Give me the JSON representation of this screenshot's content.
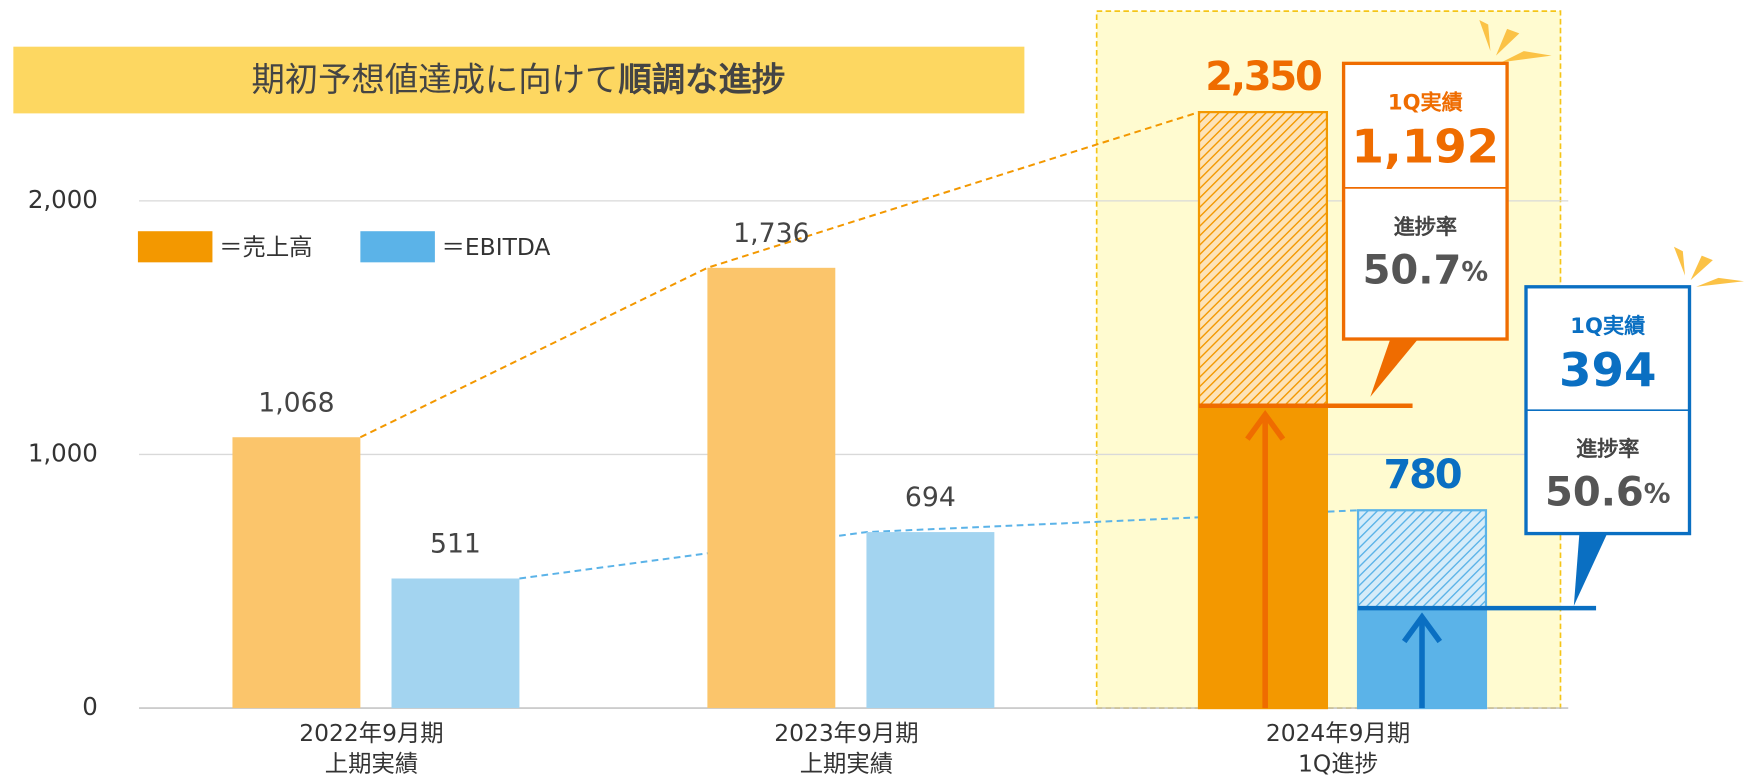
{
  "chart_data": {
    "type": "bar",
    "title": {
      "text": "期初予想値達成に向けて",
      "emphasis": "順調な進捗"
    },
    "categories": [
      [
        "2022年9月期",
        "上期実績"
      ],
      [
        "2023年9月期",
        "上期実績"
      ],
      [
        "2024年9月期",
        "1Q進捗"
      ]
    ],
    "legend_prefix": "＝",
    "series": [
      {
        "name": "売上高",
        "color": "#fbc56b",
        "highlight_color": "#f39800",
        "label_color": "#ef6c00",
        "values": [
          1068,
          1736,
          2350
        ],
        "value_labels": [
          "1,068",
          "1,736",
          "2,350"
        ]
      },
      {
        "name": "EBITDA",
        "color": "#a3d4f0",
        "highlight_color": "#5bb3e8",
        "label_color": "#0a6fc2",
        "values": [
          511,
          694,
          780
        ],
        "value_labels": [
          "511",
          "694",
          "780"
        ]
      }
    ],
    "progress": [
      {
        "series": 0,
        "heading": "1Q実績",
        "value": 1192,
        "value_label": "1,192",
        "rate_heading": "進捗率",
        "rate": 50.7,
        "rate_unit": "%"
      },
      {
        "series": 1,
        "heading": "1Q実績",
        "value": 394,
        "value_label": "394",
        "rate_heading": "進捗率",
        "rate": 50.6,
        "rate_unit": "%"
      }
    ],
    "ylim": [
      0,
      2700
    ],
    "yticks": [
      0,
      {
        "value": 1000,
        "label": "1,000"
      },
      {
        "value": 2000,
        "label": "2,000"
      }
    ],
    "grid": true
  }
}
